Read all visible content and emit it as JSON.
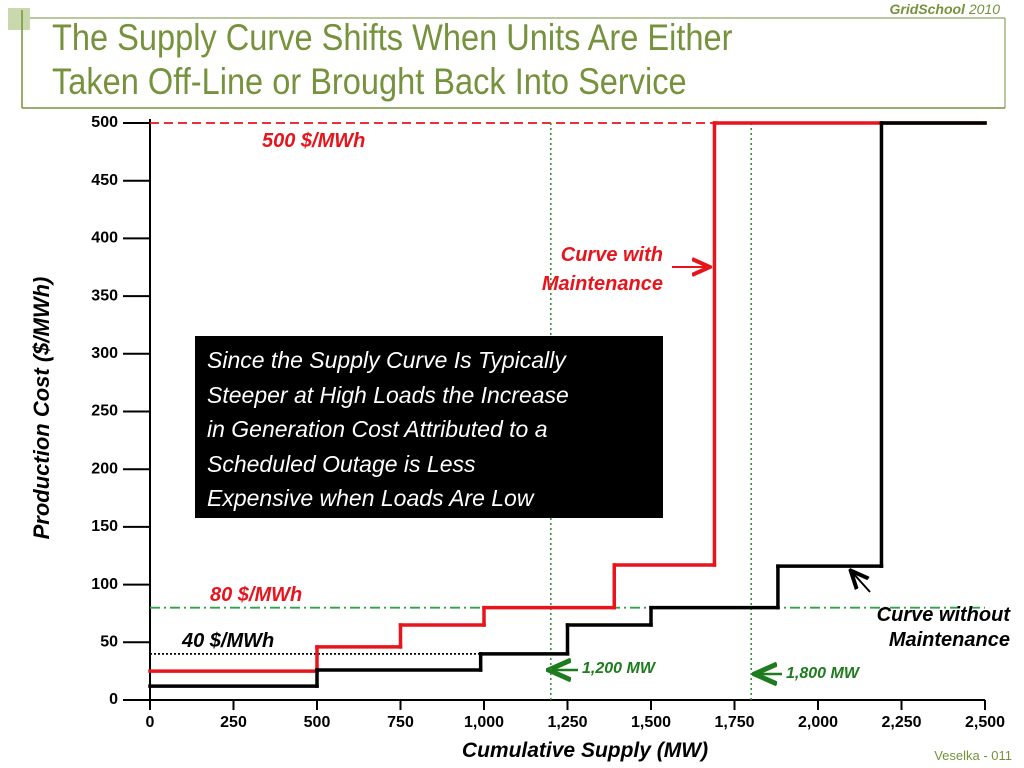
{
  "header": {
    "brand": "GridSchool",
    "year": "2010",
    "title_lines": [
      "The Supply Curve Shifts When Units Are Either",
      "Taken Off-Line or Brought Back Into Service"
    ]
  },
  "chart_data": {
    "type": "step",
    "x_label": "Cumulative Supply (MW)",
    "y_label": "Production Cost ($/MWh)",
    "xlim": [
      0,
      2500
    ],
    "ylim": [
      0,
      500
    ],
    "xticks": [
      0,
      250,
      500,
      750,
      {
        "value": 1000,
        "label": "1,000"
      },
      {
        "value": 1250,
        "label": "1,250"
      },
      {
        "value": 1500,
        "label": "1,500"
      },
      {
        "value": 1750,
        "label": "1,750"
      },
      {
        "value": 2000,
        "label": "2,000"
      },
      {
        "value": 2250,
        "label": "2,250"
      },
      {
        "value": 2500,
        "label": "2,500"
      }
    ],
    "yticks": [
      0,
      50,
      100,
      150,
      200,
      250,
      300,
      350,
      400,
      450,
      500
    ],
    "series": [
      {
        "name": "Curve with Maintenance",
        "color": "#e8141c",
        "x_edges": [
          0,
          500,
          750,
          1000,
          1390,
          1690,
          2500
        ],
        "values": [
          25,
          46,
          65,
          80,
          117,
          500
        ]
      },
      {
        "name": "Curve without Maintenance",
        "color": "#000000",
        "x_edges": [
          0,
          500,
          990,
          1250,
          1500,
          1880,
          2190,
          2500
        ],
        "values": [
          12,
          26,
          40,
          65,
          80,
          116,
          500
        ]
      }
    ],
    "h_lines": [
      {
        "value": 500,
        "label": "500 $/MWh",
        "color": "#e8141c",
        "style": "dashed",
        "x_range": [
          0,
          1690
        ]
      },
      {
        "value": 80,
        "label": "80 $/MWh",
        "color": "#2ea34a",
        "style": "dashdot",
        "x_range": [
          0,
          2500
        ]
      },
      {
        "value": 40,
        "label": "40 $/MWh",
        "color": "#000000",
        "style": "dotted",
        "x_range": [
          0,
          990
        ]
      }
    ],
    "v_lines": [
      {
        "value": 1200,
        "label": "1,200 MW",
        "color": "#2a8a2a"
      },
      {
        "value": 1800,
        "label": "1,800 MW",
        "color": "#2a8a2a"
      }
    ],
    "note_lines": [
      "Since the Supply Curve Is Typically",
      "Steeper at High Loads the Increase",
      "in Generation Cost Attributed to a",
      "Scheduled Outage is Less",
      "Expensive when Loads Are Low"
    ]
  },
  "footer": "Veselka  - 011"
}
